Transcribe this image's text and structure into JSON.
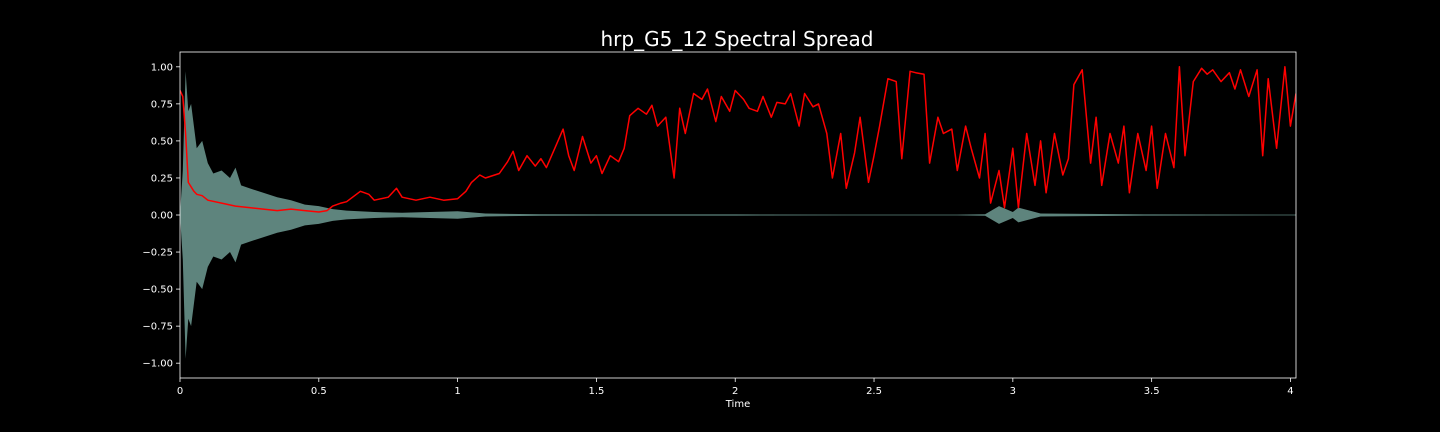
{
  "chart_data": {
    "type": "line",
    "title": "hrp_G5_12 Spectral Spread",
    "xlabel": "Time",
    "ylabel": "",
    "xlim": [
      0,
      4.02
    ],
    "ylim": [
      -1.1,
      1.1
    ],
    "x_ticks": [
      0,
      0.5,
      1,
      1.5,
      2,
      2.5,
      3,
      3.5,
      4
    ],
    "x_tick_labels": [
      "0",
      "0.5",
      "1",
      "1.5",
      "2",
      "2.5",
      "3",
      "3.5",
      "4"
    ],
    "y_ticks": [
      1.0,
      0.75,
      0.5,
      0.25,
      0.0,
      -0.25,
      -0.5,
      -0.75,
      -1.0
    ],
    "y_tick_labels": [
      "1.00",
      "0.75",
      "0.50",
      "0.25",
      "0.00",
      "−0.25",
      "−0.50",
      "−0.75",
      "−1.00"
    ],
    "grid": false,
    "background": "#000000",
    "colors": {
      "waveform": "#6f9b93",
      "spread": "#ff0000",
      "axes": "#ffffff"
    },
    "series": [
      {
        "kind": "waveform-envelope",
        "x": [
          0.0,
          0.01,
          0.02,
          0.03,
          0.04,
          0.05,
          0.06,
          0.08,
          0.1,
          0.12,
          0.15,
          0.18,
          0.2,
          0.22,
          0.25,
          0.3,
          0.35,
          0.4,
          0.45,
          0.5,
          0.55,
          0.6,
          0.7,
          0.8,
          0.9,
          1.0,
          1.1,
          1.3,
          1.5,
          1.8,
          2.0,
          2.4,
          2.8,
          2.9,
          2.95,
          3.0,
          3.02,
          3.1,
          3.5,
          4.02
        ],
        "amp": [
          0.0,
          0.3,
          0.97,
          0.7,
          0.75,
          0.6,
          0.45,
          0.5,
          0.35,
          0.28,
          0.3,
          0.25,
          0.32,
          0.2,
          0.18,
          0.15,
          0.12,
          0.1,
          0.07,
          0.06,
          0.04,
          0.03,
          0.02,
          0.015,
          0.02,
          0.025,
          0.01,
          0.005,
          0.004,
          0.004,
          0.004,
          0.003,
          0.003,
          0.005,
          0.06,
          0.02,
          0.05,
          0.01,
          0.004,
          0.003
        ]
      },
      {
        "kind": "line",
        "x": [
          0.0,
          0.01,
          0.02,
          0.03,
          0.05,
          0.06,
          0.08,
          0.1,
          0.15,
          0.2,
          0.25,
          0.3,
          0.35,
          0.4,
          0.45,
          0.5,
          0.53,
          0.55,
          0.58,
          0.6,
          0.65,
          0.68,
          0.7,
          0.75,
          0.78,
          0.8,
          0.85,
          0.9,
          0.95,
          1.0,
          1.03,
          1.05,
          1.08,
          1.1,
          1.15,
          1.18,
          1.2,
          1.22,
          1.25,
          1.28,
          1.3,
          1.32,
          1.35,
          1.38,
          1.4,
          1.42,
          1.45,
          1.48,
          1.5,
          1.52,
          1.55,
          1.58,
          1.6,
          1.62,
          1.65,
          1.68,
          1.7,
          1.72,
          1.75,
          1.78,
          1.8,
          1.82,
          1.85,
          1.88,
          1.9,
          1.93,
          1.95,
          1.98,
          2.0,
          2.03,
          2.05,
          2.08,
          2.1,
          2.13,
          2.15,
          2.18,
          2.2,
          2.23,
          2.25,
          2.28,
          2.3,
          2.33,
          2.35,
          2.38,
          2.4,
          2.43,
          2.45,
          2.48,
          2.5,
          2.52,
          2.55,
          2.58,
          2.6,
          2.63,
          2.65,
          2.68,
          2.7,
          2.73,
          2.75,
          2.78,
          2.8,
          2.83,
          2.85,
          2.88,
          2.9,
          2.92,
          2.95,
          2.97,
          3.0,
          3.02,
          3.05,
          3.08,
          3.1,
          3.12,
          3.15,
          3.18,
          3.2,
          3.22,
          3.25,
          3.28,
          3.3,
          3.32,
          3.35,
          3.38,
          3.4,
          3.42,
          3.45,
          3.48,
          3.5,
          3.52,
          3.55,
          3.58,
          3.6,
          3.62,
          3.65,
          3.68,
          3.7,
          3.72,
          3.75,
          3.78,
          3.8,
          3.82,
          3.85,
          3.88,
          3.9,
          3.92,
          3.95,
          3.98,
          4.0,
          4.02
        ],
        "y": [
          0.84,
          0.8,
          0.55,
          0.22,
          0.16,
          0.14,
          0.13,
          0.1,
          0.08,
          0.06,
          0.05,
          0.04,
          0.03,
          0.04,
          0.03,
          0.02,
          0.03,
          0.06,
          0.08,
          0.09,
          0.16,
          0.14,
          0.1,
          0.12,
          0.18,
          0.12,
          0.1,
          0.12,
          0.1,
          0.11,
          0.16,
          0.22,
          0.27,
          0.25,
          0.28,
          0.36,
          0.43,
          0.3,
          0.4,
          0.33,
          0.38,
          0.32,
          0.45,
          0.58,
          0.4,
          0.3,
          0.53,
          0.35,
          0.4,
          0.28,
          0.4,
          0.36,
          0.45,
          0.67,
          0.72,
          0.68,
          0.74,
          0.6,
          0.66,
          0.25,
          0.72,
          0.55,
          0.82,
          0.78,
          0.85,
          0.63,
          0.8,
          0.7,
          0.84,
          0.78,
          0.72,
          0.7,
          0.8,
          0.66,
          0.76,
          0.75,
          0.82,
          0.6,
          0.82,
          0.73,
          0.75,
          0.55,
          0.25,
          0.55,
          0.18,
          0.42,
          0.66,
          0.22,
          0.4,
          0.6,
          0.92,
          0.9,
          0.38,
          0.97,
          0.96,
          0.95,
          0.35,
          0.66,
          0.55,
          0.58,
          0.3,
          0.6,
          0.45,
          0.25,
          0.55,
          0.08,
          0.3,
          0.05,
          0.45,
          0.05,
          0.55,
          0.2,
          0.5,
          0.15,
          0.55,
          0.27,
          0.38,
          0.88,
          0.98,
          0.35,
          0.66,
          0.2,
          0.55,
          0.35,
          0.6,
          0.15,
          0.55,
          0.3,
          0.6,
          0.18,
          0.55,
          0.32,
          1.0,
          0.4,
          0.9,
          0.99,
          0.95,
          0.98,
          0.9,
          0.96,
          0.85,
          0.98,
          0.8,
          0.98,
          0.4,
          0.92,
          0.45,
          1.0,
          0.6,
          0.82
        ]
      }
    ]
  }
}
